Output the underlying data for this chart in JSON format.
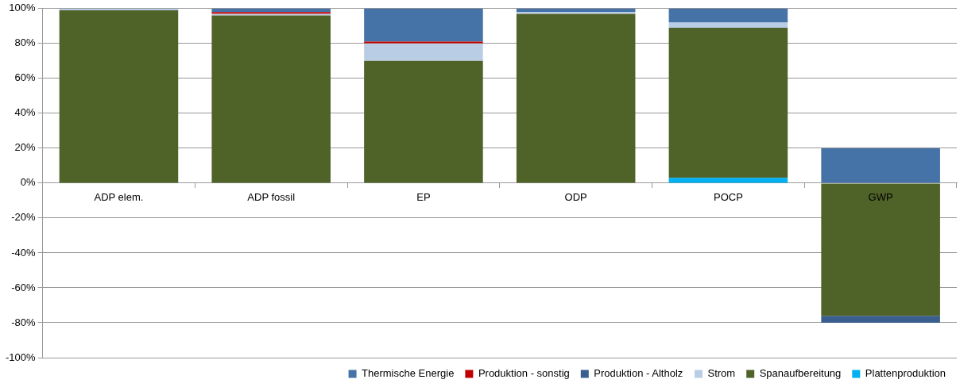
{
  "chart_data": {
    "type": "bar",
    "stacked": true,
    "categories": [
      "ADP elem.",
      "ADP fossil",
      "EP",
      "ODP",
      "POCP",
      "GWP"
    ],
    "series": [
      {
        "name": "Plattenproduktion",
        "color": "#00b0f0",
        "values": [
          0,
          0,
          0,
          0,
          3,
          0
        ]
      },
      {
        "name": "Spanaufbereitung",
        "color": "#4f6228",
        "values": [
          99,
          96,
          70,
          97,
          86,
          -76
        ]
      },
      {
        "name": "Strom",
        "color": "#b9cde5",
        "values": [
          1,
          1,
          10,
          1,
          3,
          0
        ]
      },
      {
        "name": "Produktion - Altholz",
        "color": "#3a5f8f",
        "values": [
          0,
          0,
          0,
          0,
          0,
          -4
        ]
      },
      {
        "name": "Produktion - sonstig",
        "color": "#c00000",
        "values": [
          0,
          1,
          1,
          0,
          0,
          0
        ]
      },
      {
        "name": "Thermische Energie",
        "color": "#4572a7",
        "values": [
          0,
          2,
          19,
          2,
          8,
          20
        ]
      }
    ],
    "ylim": [
      -100,
      100
    ],
    "yticks": [
      {
        "value": -100,
        "label": "-100%"
      },
      {
        "value": -80,
        "label": "-80%"
      },
      {
        "value": -60,
        "label": "-60%"
      },
      {
        "value": -40,
        "label": "-40%"
      },
      {
        "value": -20,
        "label": "-20%"
      },
      {
        "value": 0,
        "label": "0%"
      },
      {
        "value": 20,
        "label": "20%"
      },
      {
        "value": 40,
        "label": "40%"
      },
      {
        "value": 60,
        "label": "60%"
      },
      {
        "value": 80,
        "label": "80%"
      },
      {
        "value": 100,
        "label": "100%"
      }
    ],
    "grid": "y",
    "legend": "bottom"
  }
}
